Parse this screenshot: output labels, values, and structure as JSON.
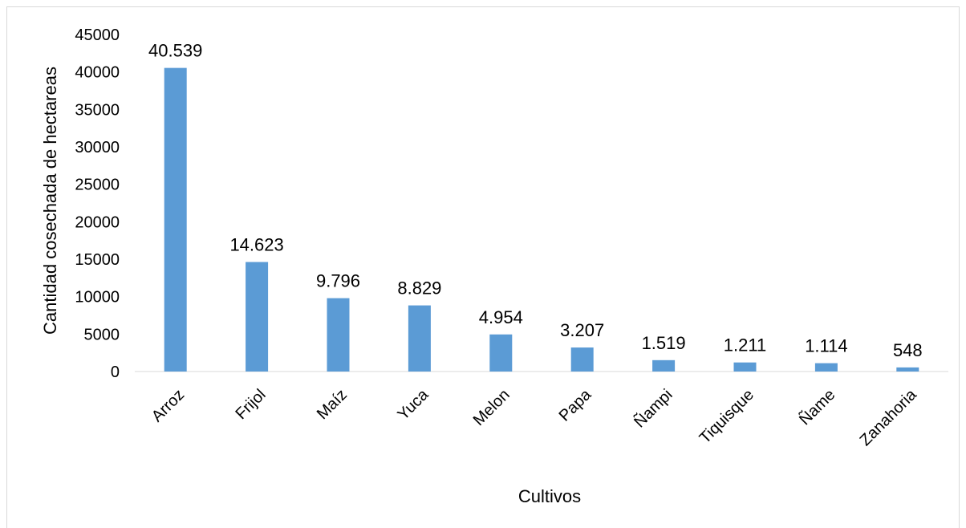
{
  "chart_data": {
    "type": "bar",
    "title": "",
    "xlabel": "Cultivos",
    "ylabel": "Cantidad cosechada de hectareas",
    "categories": [
      "Arroz",
      "Frijol",
      "Maíz",
      "Yuca",
      "Melon",
      "Papa",
      "Ñampi",
      "Tiquisque",
      "Ñame",
      "Zanahoria"
    ],
    "values": [
      40539,
      14623,
      9796,
      8829,
      4954,
      3207,
      1519,
      1211,
      1114,
      548
    ],
    "data_labels": [
      "40.539",
      "14.623",
      "9.796",
      "8.829",
      "4.954",
      "3.207",
      "1.519",
      "1.211",
      "1.114",
      "548"
    ],
    "ylim": [
      0,
      45000
    ],
    "yticks": [
      "0",
      "5000",
      "10000",
      "15000",
      "20000",
      "25000",
      "30000",
      "35000",
      "40000",
      "45000"
    ],
    "grid": false,
    "legend": "none",
    "bar_color": "#5b9bd5"
  }
}
